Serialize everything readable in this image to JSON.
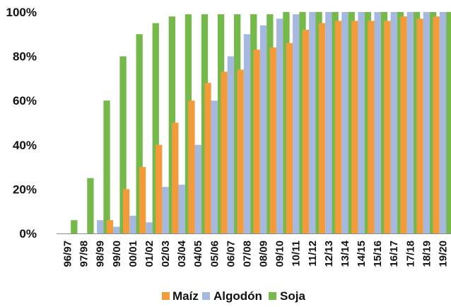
{
  "chart_data": {
    "type": "bar",
    "categories": [
      "96/97",
      "97/98",
      "98/99",
      "99/00",
      "00/01",
      "01/02",
      "02/03",
      "03/04",
      "04/05",
      "05/06",
      "06/07",
      "07/08",
      "08/09",
      "09/10",
      "10/11",
      "11/12",
      "12/13",
      "13/14",
      "14/15",
      "15/16",
      "16/17",
      "17/18",
      "18/19",
      "19/20"
    ],
    "series": [
      {
        "name": "Maíz",
        "color": "#F39A3B",
        "values": [
          0,
          0,
          0,
          6,
          20,
          30,
          40,
          50,
          60,
          68,
          73,
          74,
          83,
          84,
          86,
          92,
          95,
          96,
          96,
          96,
          96,
          98,
          97,
          98
        ]
      },
      {
        "name": "Algodón",
        "color": "#A5B8DF",
        "values": [
          0,
          0,
          6,
          3,
          8,
          5,
          21,
          22,
          40,
          60,
          80,
          90,
          94,
          97,
          99,
          100,
          100,
          100,
          100,
          100,
          100,
          100,
          100,
          100
        ]
      },
      {
        "name": "Soja",
        "color": "#76B94B",
        "values": [
          6,
          25,
          60,
          80,
          90,
          95,
          98,
          99,
          99,
          99,
          99,
          99,
          99,
          100,
          100,
          100,
          100,
          100,
          100,
          100,
          100,
          100,
          100,
          100
        ]
      }
    ],
    "ylim": [
      0,
      100
    ],
    "yticks": [
      "0%",
      "20%",
      "40%",
      "60%",
      "80%",
      "100%"
    ],
    "ytick_values": [
      0,
      20,
      40,
      60,
      80,
      100
    ],
    "legend": {
      "position": "bottom"
    },
    "grid": false
  }
}
